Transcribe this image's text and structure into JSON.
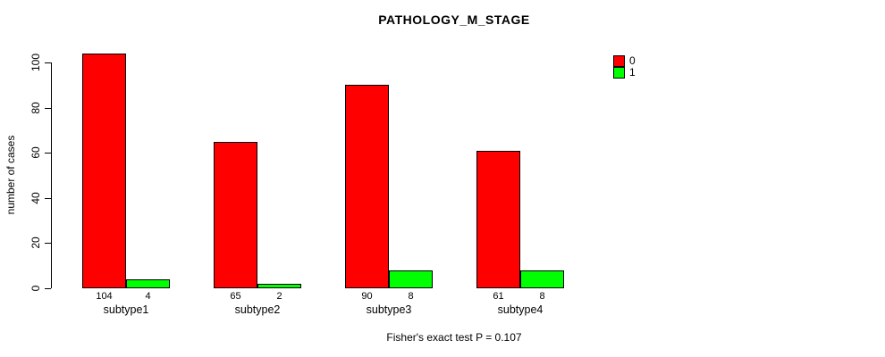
{
  "chart_data": {
    "type": "bar",
    "title": "PATHOLOGY_M_STAGE",
    "ylabel": "number of cases",
    "xlabel": "",
    "categories": [
      "subtype1",
      "subtype2",
      "subtype3",
      "subtype4"
    ],
    "series": [
      {
        "name": "0",
        "color": "#FF0000",
        "values": [
          104,
          65,
          90,
          61
        ]
      },
      {
        "name": "1",
        "color": "#00FF00",
        "values": [
          4,
          2,
          8,
          8
        ]
      }
    ],
    "bar_value_labels_shown": true,
    "yticks": [
      0,
      20,
      40,
      60,
      80,
      100
    ],
    "ylim": [
      0,
      104
    ],
    "grid": false,
    "legend_position": "top-right",
    "legend_labels": [
      "0",
      "1"
    ],
    "footnote": "Fisher's exact test P = 0.107",
    "axis_color": "#000000",
    "background_color": "#FFFFFF"
  }
}
